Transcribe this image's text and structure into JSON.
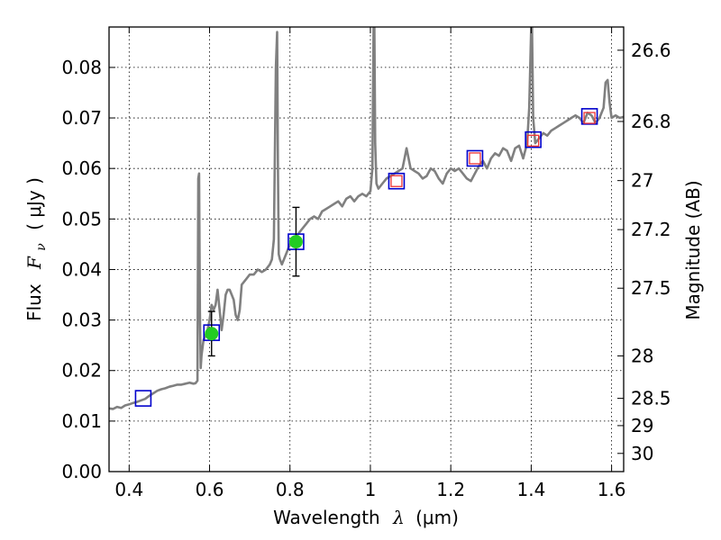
{
  "chart_data": {
    "type": "line",
    "xlabel_text": "Wavelength",
    "xlabel_symbol": "λ",
    "xlabel_unit": "(μm)",
    "ylabel_text": "Flux",
    "ylabel_symbol": "F",
    "ylabel_sub": "ν",
    "ylabel_unit": "( μJy )",
    "y2label": "Magnitude (AB)",
    "xlim": [
      0.35,
      1.63
    ],
    "ylim": [
      0.0,
      0.088
    ],
    "xticks": [
      0.4,
      0.6,
      0.8,
      1.0,
      1.2,
      1.4,
      1.6
    ],
    "xtick_labels": [
      "0.4",
      "0.6",
      "0.8",
      "1",
      "1.2",
      "1.4",
      "1.6"
    ],
    "yticks": [
      0.0,
      0.01,
      0.02,
      0.03,
      0.04,
      0.05,
      0.06,
      0.07,
      0.08
    ],
    "ytick_labels": [
      "0.00",
      "0.01",
      "0.02",
      "0.03",
      "0.04",
      "0.05",
      "0.06",
      "0.07",
      "0.08"
    ],
    "y2ticks": [
      {
        "label": "26.6",
        "flux": 0.0834
      },
      {
        "label": "26.8",
        "flux": 0.0693
      },
      {
        "label": "27",
        "flux": 0.0576
      },
      {
        "label": "27.2",
        "flux": 0.0479
      },
      {
        "label": "27.5",
        "flux": 0.0363
      },
      {
        "label": "28",
        "flux": 0.0229
      },
      {
        "label": "28.5",
        "flux": 0.0145
      },
      {
        "label": "29",
        "flux": 0.0091
      },
      {
        "label": "30",
        "flux": 0.0036
      }
    ],
    "grid": true,
    "series": [
      {
        "kind": "sed_line",
        "color": "#808080",
        "x": [
          0.35,
          0.36,
          0.37,
          0.38,
          0.39,
          0.4,
          0.41,
          0.42,
          0.43,
          0.44,
          0.45,
          0.46,
          0.47,
          0.48,
          0.49,
          0.5,
          0.51,
          0.52,
          0.53,
          0.54,
          0.55,
          0.56,
          0.565,
          0.57,
          0.572,
          0.574,
          0.576,
          0.578,
          0.58,
          0.585,
          0.59,
          0.595,
          0.6,
          0.605,
          0.61,
          0.615,
          0.62,
          0.625,
          0.63,
          0.635,
          0.64,
          0.645,
          0.65,
          0.655,
          0.66,
          0.665,
          0.67,
          0.675,
          0.68,
          0.69,
          0.7,
          0.71,
          0.72,
          0.73,
          0.74,
          0.75,
          0.755,
          0.76,
          0.765,
          0.768,
          0.77,
          0.772,
          0.775,
          0.78,
          0.79,
          0.8,
          0.81,
          0.82,
          0.83,
          0.84,
          0.85,
          0.86,
          0.87,
          0.88,
          0.89,
          0.9,
          0.91,
          0.92,
          0.93,
          0.94,
          0.95,
          0.96,
          0.97,
          0.98,
          0.99,
          1.0,
          1.005,
          1.008,
          1.01,
          1.012,
          1.015,
          1.02,
          1.03,
          1.04,
          1.05,
          1.06,
          1.07,
          1.08,
          1.09,
          1.1,
          1.11,
          1.12,
          1.13,
          1.14,
          1.15,
          1.16,
          1.17,
          1.18,
          1.19,
          1.2,
          1.21,
          1.22,
          1.23,
          1.24,
          1.25,
          1.26,
          1.27,
          1.28,
          1.29,
          1.3,
          1.31,
          1.32,
          1.33,
          1.34,
          1.35,
          1.36,
          1.37,
          1.38,
          1.39,
          1.395,
          1.4,
          1.402,
          1.405,
          1.41,
          1.42,
          1.43,
          1.44,
          1.45,
          1.46,
          1.47,
          1.48,
          1.49,
          1.5,
          1.51,
          1.52,
          1.53,
          1.54,
          1.55,
          1.56,
          1.57,
          1.58,
          1.585,
          1.59,
          1.595,
          1.6,
          1.61,
          1.62,
          1.63
        ],
        "y": [
          0.0125,
          0.0124,
          0.0128,
          0.0126,
          0.0131,
          0.0133,
          0.0136,
          0.0138,
          0.0141,
          0.0144,
          0.015,
          0.0155,
          0.016,
          0.0163,
          0.0165,
          0.0168,
          0.017,
          0.0172,
          0.0172,
          0.0174,
          0.0176,
          0.0174,
          0.0175,
          0.018,
          0.058,
          0.059,
          0.032,
          0.0205,
          0.023,
          0.026,
          0.027,
          0.028,
          0.03,
          0.033,
          0.032,
          0.033,
          0.036,
          0.032,
          0.028,
          0.031,
          0.035,
          0.036,
          0.036,
          0.035,
          0.034,
          0.031,
          0.03,
          0.032,
          0.037,
          0.038,
          0.039,
          0.039,
          0.04,
          0.0395,
          0.04,
          0.041,
          0.042,
          0.046,
          0.08,
          0.087,
          0.06,
          0.043,
          0.042,
          0.041,
          0.043,
          0.045,
          0.046,
          0.047,
          0.048,
          0.049,
          0.05,
          0.0505,
          0.05,
          0.0515,
          0.052,
          0.0525,
          0.053,
          0.0535,
          0.0525,
          0.054,
          0.0545,
          0.0535,
          0.0545,
          0.055,
          0.0545,
          0.0555,
          0.06,
          0.088,
          0.088,
          0.065,
          0.057,
          0.056,
          0.057,
          0.058,
          0.0585,
          0.059,
          0.0595,
          0.06,
          0.064,
          0.06,
          0.0595,
          0.059,
          0.058,
          0.0585,
          0.06,
          0.0595,
          0.058,
          0.057,
          0.059,
          0.06,
          0.0595,
          0.06,
          0.059,
          0.058,
          0.0575,
          0.059,
          0.0605,
          0.0615,
          0.06,
          0.062,
          0.063,
          0.0625,
          0.064,
          0.0635,
          0.0615,
          0.064,
          0.0645,
          0.062,
          0.065,
          0.072,
          0.088,
          0.088,
          0.07,
          0.065,
          0.066,
          0.067,
          0.0665,
          0.0675,
          0.068,
          0.0685,
          0.069,
          0.0695,
          0.07,
          0.0705,
          0.07,
          0.069,
          0.071,
          0.0705,
          0.069,
          0.07,
          0.072,
          0.077,
          0.0775,
          0.073,
          0.07,
          0.0705,
          0.07,
          0.0702
        ]
      },
      {
        "kind": "observed_points",
        "color": "#22cc22",
        "x": [
          0.605,
          0.815
        ],
        "y": [
          0.0273,
          0.0455
        ],
        "yerr": [
          0.0044,
          0.0068
        ]
      },
      {
        "kind": "model_blue_squares",
        "color": "#0000cc",
        "x": [
          0.435,
          0.605,
          0.815,
          1.065,
          1.26,
          1.405,
          1.545
        ],
        "y": [
          0.0145,
          0.0275,
          0.0455,
          0.0575,
          0.062,
          0.0657,
          0.0703
        ]
      },
      {
        "kind": "model_red_squares",
        "color": "#ee3333",
        "x": [
          1.065,
          1.26,
          1.405,
          1.545
        ],
        "y": [
          0.0575,
          0.062,
          0.0655,
          0.07
        ]
      }
    ]
  }
}
